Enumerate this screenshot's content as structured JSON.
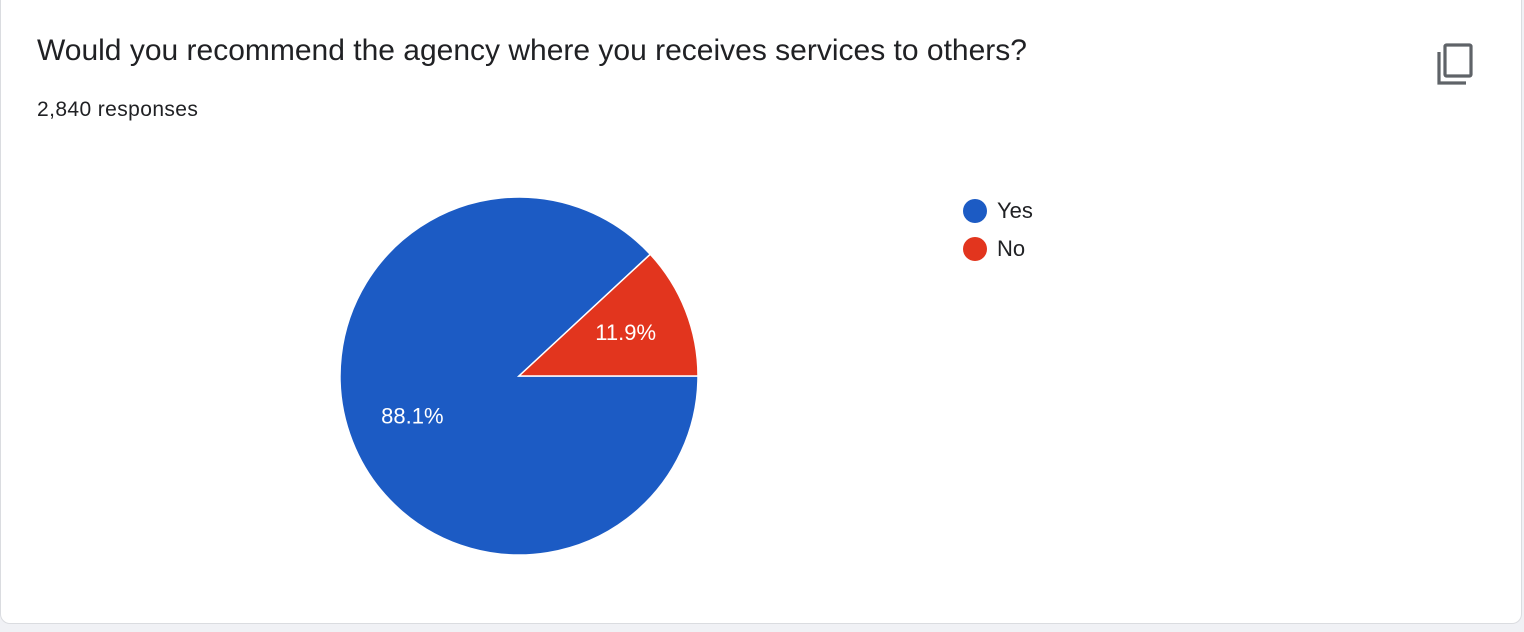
{
  "header": {
    "question": "Would you recommend the agency where you receives services to others?",
    "responses": "2,840 responses",
    "copy_icon": "copy-icon"
  },
  "chart_data": {
    "type": "pie",
    "title": "",
    "categories": [
      "Yes",
      "No"
    ],
    "values": [
      88.1,
      11.9
    ],
    "labels": [
      "88.1%",
      "11.9%"
    ],
    "colors": [
      "#1c5bc4",
      "#e2351e"
    ],
    "legend_position": "right"
  }
}
